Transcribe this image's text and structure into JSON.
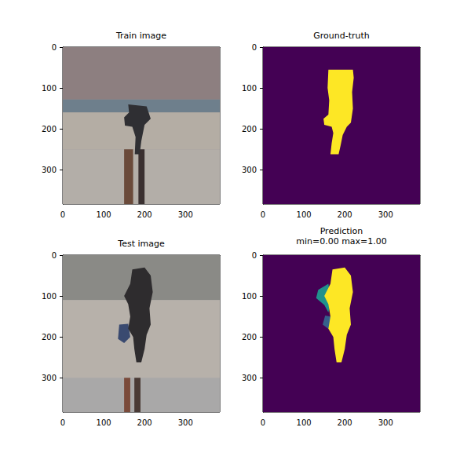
{
  "chart_data": [
    {
      "type": "image",
      "title": "Train image",
      "xlim": [
        0,
        384
      ],
      "ylim": [
        384,
        0
      ],
      "xticks": [
        0,
        100,
        200,
        300
      ],
      "yticks": [
        0,
        100,
        200,
        300
      ],
      "regions": [
        {
          "color": "#9c9896",
          "points": [
            [
              0,
              0
            ],
            [
              384,
              0
            ],
            [
              384,
              384
            ],
            [
              0,
              384
            ]
          ]
        },
        {
          "color": "#8d7f80",
          "points": [
            [
              0,
              0
            ],
            [
              384,
              0
            ],
            [
              384,
              128
            ],
            [
              0,
              128
            ]
          ]
        },
        {
          "color": "#6e7f8c",
          "points": [
            [
              0,
              128
            ],
            [
              384,
              128
            ],
            [
              384,
              160
            ],
            [
              0,
              160
            ]
          ]
        },
        {
          "color": "#b4ada4",
          "points": [
            [
              0,
              160
            ],
            [
              384,
              160
            ],
            [
              384,
              250
            ],
            [
              0,
              250
            ]
          ]
        },
        {
          "color": "#b3aea8",
          "points": [
            [
              0,
              250
            ],
            [
              384,
              250
            ],
            [
              384,
              384
            ],
            [
              0,
              384
            ]
          ]
        },
        {
          "color": "#6a4a3a",
          "points": [
            [
              150,
              250
            ],
            [
              172,
              250
            ],
            [
              172,
              384
            ],
            [
              150,
              384
            ]
          ]
        },
        {
          "color": "#3a3030",
          "points": [
            [
              185,
              250
            ],
            [
              200,
              250
            ],
            [
              200,
              384
            ],
            [
              185,
              384
            ]
          ]
        },
        {
          "color": "#2f2f33",
          "points": [
            [
              160,
              140
            ],
            [
              205,
              145
            ],
            [
              215,
              175
            ],
            [
              200,
              190
            ],
            [
              192,
              230
            ],
            [
              188,
              262
            ],
            [
              176,
              262
            ],
            [
              178,
              220
            ],
            [
              170,
              195
            ],
            [
              152,
              192
            ],
            [
              150,
              172
            ],
            [
              162,
              160
            ]
          ]
        }
      ]
    },
    {
      "type": "image",
      "title": "Ground-truth",
      "xlim": [
        0,
        384
      ],
      "ylim": [
        384,
        0
      ],
      "xticks": [
        0,
        100,
        200,
        300
      ],
      "yticks": [
        0,
        100,
        200,
        300
      ],
      "regions": [
        {
          "value": 0,
          "points": [
            [
              0,
              0
            ],
            [
              384,
              0
            ],
            [
              384,
              384
            ],
            [
              0,
              384
            ]
          ]
        },
        {
          "value": 1,
          "points": [
            [
              160,
              55
            ],
            [
              220,
              55
            ],
            [
              222,
              75
            ],
            [
              218,
              110
            ],
            [
              220,
              150
            ],
            [
              215,
              185
            ],
            [
              205,
              195
            ],
            [
              195,
              215
            ],
            [
              190,
              240
            ],
            [
              185,
              262
            ],
            [
              165,
              262
            ],
            [
              168,
              235
            ],
            [
              172,
              210
            ],
            [
              168,
              195
            ],
            [
              150,
              190
            ],
            [
              148,
              175
            ],
            [
              160,
              165
            ],
            [
              162,
              130
            ],
            [
              158,
              100
            ]
          ]
        }
      ]
    },
    {
      "type": "image",
      "title": "Test image",
      "xlim": [
        0,
        384
      ],
      "ylim": [
        384,
        0
      ],
      "xticks": [
        0,
        100,
        200,
        300
      ],
      "yticks": [
        0,
        100,
        200,
        300
      ],
      "regions": [
        {
          "color": "#a9a8a8",
          "points": [
            [
              0,
              0
            ],
            [
              384,
              0
            ],
            [
              384,
              384
            ],
            [
              0,
              384
            ]
          ]
        },
        {
          "color": "#8a8a86",
          "points": [
            [
              0,
              0
            ],
            [
              384,
              0
            ],
            [
              384,
              110
            ],
            [
              0,
              110
            ]
          ]
        },
        {
          "color": "#b7b1aa",
          "points": [
            [
              0,
              110
            ],
            [
              384,
              110
            ],
            [
              384,
              300
            ],
            [
              0,
              300
            ]
          ]
        },
        {
          "color": "#7a4a3a",
          "points": [
            [
              150,
              300
            ],
            [
              165,
              300
            ],
            [
              165,
              384
            ],
            [
              150,
              384
            ]
          ]
        },
        {
          "color": "#4a3a35",
          "points": [
            [
              175,
              300
            ],
            [
              190,
              300
            ],
            [
              190,
              384
            ],
            [
              175,
              384
            ]
          ]
        },
        {
          "color": "#3a4a70",
          "points": [
            [
              138,
              170
            ],
            [
              160,
              168
            ],
            [
              165,
              200
            ],
            [
              150,
              215
            ],
            [
              135,
              205
            ]
          ]
        },
        {
          "color": "#2e2c2e",
          "points": [
            [
              170,
              35
            ],
            [
              200,
              30
            ],
            [
              215,
              50
            ],
            [
              220,
              90
            ],
            [
              212,
              130
            ],
            [
              215,
              170
            ],
            [
              205,
              195
            ],
            [
              200,
              230
            ],
            [
              192,
              262
            ],
            [
              180,
              262
            ],
            [
              175,
              230
            ],
            [
              172,
              200
            ],
            [
              160,
              180
            ],
            [
              165,
              150
            ],
            [
              160,
              120
            ],
            [
              150,
              100
            ],
            [
              165,
              70
            ]
          ]
        }
      ]
    },
    {
      "type": "image",
      "title": "Prediction",
      "subtitle": "min=0.00 max=1.00",
      "xlim": [
        0,
        384
      ],
      "ylim": [
        384,
        0
      ],
      "xticks": [
        0,
        100,
        200,
        300
      ],
      "yticks": [
        0,
        100,
        200,
        300
      ],
      "regions": [
        {
          "value": 0,
          "points": [
            [
              0,
              0
            ],
            [
              384,
              0
            ],
            [
              384,
              384
            ],
            [
              0,
              384
            ]
          ]
        },
        {
          "value": 0.5,
          "points": [
            [
              135,
              85
            ],
            [
              160,
              70
            ],
            [
              166,
              110
            ],
            [
              160,
              140
            ],
            [
              150,
              122
            ],
            [
              130,
              105
            ]
          ]
        },
        {
          "value": 0.3,
          "points": [
            [
              152,
              148
            ],
            [
              166,
              150
            ],
            [
              162,
              182
            ],
            [
              146,
              170
            ]
          ]
        },
        {
          "value": 1,
          "points": [
            [
              170,
              35
            ],
            [
              200,
              30
            ],
            [
              215,
              50
            ],
            [
              220,
              90
            ],
            [
              212,
              130
            ],
            [
              215,
              170
            ],
            [
              205,
              195
            ],
            [
              200,
              230
            ],
            [
              192,
              262
            ],
            [
              180,
              262
            ],
            [
              175,
              230
            ],
            [
              172,
              200
            ],
            [
              160,
              180
            ],
            [
              165,
              150
            ],
            [
              160,
              120
            ],
            [
              150,
              100
            ],
            [
              165,
              70
            ]
          ]
        }
      ]
    }
  ]
}
